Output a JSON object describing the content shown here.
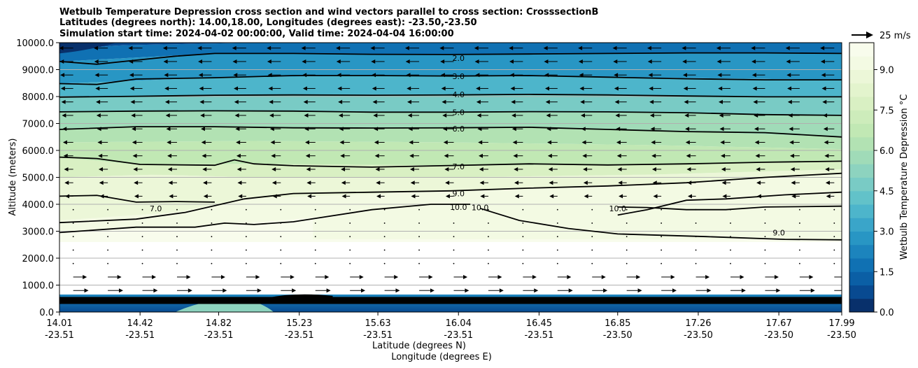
{
  "chart_data": {
    "type": "contour",
    "title_lines": [
      "Wetbulb Temperature Depression cross section and wind vectors parallel to cross section: CrosssectionB",
      "Latitudes (degrees north): 14.00,18.00, Longitudes (degrees east): -23.50,-23.50",
      "Simulation start time: 2024-04-02 00:00:00, Valid time: 2024-04-04 16:00:00"
    ],
    "ylabel": "Altitude (meters)",
    "xlabel_lat": "Latitude (degrees N)",
    "xlabel_lon": "Longitude (degrees E)",
    "ylim": [
      0,
      10000
    ],
    "y_ticks": [
      {
        "value": 0,
        "label": "0.0"
      },
      {
        "value": 1000,
        "label": "1000.0"
      },
      {
        "value": 2000,
        "label": "2000.0"
      },
      {
        "value": 3000,
        "label": "3000.0"
      },
      {
        "value": 4000,
        "label": "4000.0"
      },
      {
        "value": 5000,
        "label": "5000.0"
      },
      {
        "value": 6000,
        "label": "6000.0"
      },
      {
        "value": 7000,
        "label": "7000.0"
      },
      {
        "value": 8000,
        "label": "8000.0"
      },
      {
        "value": 9000,
        "label": "9000.0"
      },
      {
        "value": 10000,
        "label": "10000.0"
      }
    ],
    "xlim": [
      14.01,
      17.99
    ],
    "x_ticks": [
      {
        "lat": 14.01,
        "lat_label": "14.01",
        "lon_label": "-23.51"
      },
      {
        "lat": 14.42,
        "lat_label": "14.42",
        "lon_label": "-23.51"
      },
      {
        "lat": 14.82,
        "lat_label": "14.82",
        "lon_label": "-23.51"
      },
      {
        "lat": 15.23,
        "lat_label": "15.23",
        "lon_label": "-23.51"
      },
      {
        "lat": 15.63,
        "lat_label": "15.63",
        "lon_label": "-23.51"
      },
      {
        "lat": 16.04,
        "lat_label": "16.04",
        "lon_label": "-23.51"
      },
      {
        "lat": 16.45,
        "lat_label": "16.45",
        "lon_label": "-23.51"
      },
      {
        "lat": 16.85,
        "lat_label": "16.85",
        "lon_label": "-23.50"
      },
      {
        "lat": 17.26,
        "lat_label": "17.26",
        "lon_label": "-23.50"
      },
      {
        "lat": 17.67,
        "lat_label": "17.67",
        "lon_label": "-23.50"
      },
      {
        "lat": 17.99,
        "lat_label": "17.99",
        "lon_label": "-23.50"
      }
    ],
    "colorbar": {
      "label": "Wetbulb Temperature Depression °C",
      "range": [
        0,
        10
      ],
      "ticks": [
        {
          "value": 0,
          "label": "0.0"
        },
        {
          "value": 1.5,
          "label": "1.5"
        },
        {
          "value": 3,
          "label": "3.0"
        },
        {
          "value": 4.5,
          "label": "4.5"
        },
        {
          "value": 6,
          "label": "6.0"
        },
        {
          "value": 7.5,
          "label": "7.5"
        },
        {
          "value": 9,
          "label": "9.0"
        }
      ],
      "colors": [
        "#08306b",
        "#084a91",
        "#0b5fa5",
        "#1071b3",
        "#1c84bd",
        "#2896c4",
        "#3aa5c9",
        "#4db5cb",
        "#62c2c9",
        "#79cbc5",
        "#8dd3bf",
        "#a0dbb8",
        "#b2e2b3",
        "#c1e8b4",
        "#cdecbb",
        "#d9f0c3",
        "#e3f4cd",
        "#ecf7d8",
        "#f3fae3",
        "#f8fcec"
      ]
    },
    "wind_key": {
      "label": "25 m/s",
      "speed_ms": 25
    },
    "contour_lines": [
      {
        "label": "2.0",
        "label_lat": 16.04,
        "label_alt": 9430,
        "points": [
          [
            14.01,
            9300
          ],
          [
            14.2,
            9200
          ],
          [
            14.4,
            9350
          ],
          [
            14.6,
            9500
          ],
          [
            14.8,
            9600
          ],
          [
            15.2,
            9600
          ],
          [
            15.6,
            9570
          ],
          [
            16.0,
            9560
          ],
          [
            16.4,
            9580
          ],
          [
            16.8,
            9600
          ],
          [
            17.2,
            9620
          ],
          [
            17.6,
            9620
          ],
          [
            17.99,
            9600
          ]
        ]
      },
      {
        "label": "3.0",
        "label_lat": 16.04,
        "label_alt": 8750,
        "points": [
          [
            14.01,
            8480
          ],
          [
            14.2,
            8450
          ],
          [
            14.4,
            8650
          ],
          [
            14.8,
            8700
          ],
          [
            15.2,
            8780
          ],
          [
            15.6,
            8780
          ],
          [
            16.0,
            8760
          ],
          [
            16.4,
            8780
          ],
          [
            16.8,
            8720
          ],
          [
            17.2,
            8660
          ],
          [
            17.6,
            8620
          ],
          [
            17.99,
            8620
          ]
        ]
      },
      {
        "label": "4.0",
        "label_lat": 16.04,
        "label_alt": 8080,
        "points": [
          [
            14.01,
            7980
          ],
          [
            14.4,
            8010
          ],
          [
            14.8,
            8050
          ],
          [
            15.2,
            8060
          ],
          [
            15.6,
            8050
          ],
          [
            16.0,
            8060
          ],
          [
            16.4,
            8080
          ],
          [
            16.8,
            8060
          ],
          [
            17.2,
            8020
          ],
          [
            17.6,
            7990
          ],
          [
            17.99,
            7990
          ]
        ]
      },
      {
        "label": "5.0",
        "label_lat": 16.04,
        "label_alt": 7420,
        "points": [
          [
            14.01,
            7430
          ],
          [
            14.4,
            7460
          ],
          [
            14.8,
            7470
          ],
          [
            15.2,
            7460
          ],
          [
            15.6,
            7420
          ],
          [
            16.0,
            7420
          ],
          [
            16.4,
            7440
          ],
          [
            16.8,
            7430
          ],
          [
            17.2,
            7400
          ],
          [
            17.6,
            7330
          ],
          [
            17.99,
            7300
          ]
        ]
      },
      {
        "label": "6.0",
        "label_lat": 16.04,
        "label_alt": 6800,
        "points": [
          [
            14.01,
            6780
          ],
          [
            14.4,
            6880
          ],
          [
            14.8,
            6880
          ],
          [
            15.2,
            6840
          ],
          [
            15.6,
            6830
          ],
          [
            16.0,
            6840
          ],
          [
            16.4,
            6860
          ],
          [
            16.8,
            6780
          ],
          [
            17.2,
            6700
          ],
          [
            17.6,
            6660
          ],
          [
            17.99,
            6500
          ]
        ]
      },
      {
        "label": "7.0",
        "label_lat": 16.04,
        "label_alt": 5400,
        "points": [
          [
            14.01,
            5750
          ],
          [
            14.2,
            5700
          ],
          [
            14.42,
            5480
          ],
          [
            14.8,
            5450
          ],
          [
            14.9,
            5650
          ],
          [
            15.0,
            5500
          ],
          [
            15.2,
            5430
          ],
          [
            15.6,
            5380
          ],
          [
            16.0,
            5440
          ],
          [
            16.4,
            5500
          ],
          [
            16.8,
            5460
          ],
          [
            17.2,
            5500
          ],
          [
            17.6,
            5560
          ],
          [
            17.99,
            5600
          ]
        ]
      },
      {
        "label": "7.0",
        "label_lat": 14.5,
        "label_alt": 3850,
        "points": [
          [
            14.01,
            4300
          ],
          [
            14.2,
            4330
          ],
          [
            14.4,
            4080
          ],
          [
            14.6,
            4100
          ],
          [
            14.8,
            4080
          ]
        ]
      },
      {
        "label": "9.0",
        "label_lat": 16.04,
        "label_alt": 4400,
        "points": [
          [
            14.01,
            3320
          ],
          [
            14.4,
            3450
          ],
          [
            14.65,
            3700
          ],
          [
            14.95,
            4200
          ],
          [
            15.2,
            4400
          ],
          [
            15.6,
            4450
          ],
          [
            16.0,
            4500
          ],
          [
            16.4,
            4600
          ],
          [
            16.8,
            4680
          ],
          [
            17.2,
            4800
          ],
          [
            17.6,
            5000
          ],
          [
            17.99,
            5150
          ]
        ]
      },
      {
        "label": "10.0",
        "label_lat": 16.04,
        "label_alt": 3900,
        "points": [
          [
            14.01,
            2950
          ],
          [
            14.4,
            3150
          ],
          [
            14.7,
            3150
          ],
          [
            14.85,
            3300
          ],
          [
            15.0,
            3250
          ],
          [
            15.2,
            3350
          ],
          [
            15.6,
            3800
          ],
          [
            15.9,
            4000
          ],
          [
            16.1,
            4000
          ]
        ]
      },
      {
        "label": "10.0",
        "label_lat": 16.15,
        "label_alt": 3880,
        "points": [
          [
            16.15,
            3850
          ],
          [
            16.35,
            3400
          ],
          [
            16.6,
            3100
          ],
          [
            16.85,
            2900
          ],
          [
            17.3,
            2800
          ],
          [
            17.7,
            2700
          ],
          [
            17.99,
            2680
          ]
        ]
      },
      {
        "label": "10.0",
        "label_lat": 16.85,
        "label_alt": 3850,
        "points": [
          [
            16.85,
            3900
          ],
          [
            17.0,
            3880
          ],
          [
            17.2,
            3800
          ],
          [
            17.4,
            3800
          ],
          [
            17.6,
            3900
          ],
          [
            17.99,
            3930
          ]
        ]
      },
      {
        "label": "9.0",
        "label_lat": 17.67,
        "label_alt": 2950,
        "points": [
          [
            16.85,
            3600
          ],
          [
            17.0,
            3800
          ],
          [
            17.2,
            4150
          ],
          [
            17.4,
            4200
          ],
          [
            17.7,
            4350
          ],
          [
            17.99,
            4450
          ]
        ]
      }
    ],
    "wind_note": "Wind vectors: leftward (southward) aloft above ~4000 m, near calm between 2000-4000 m, rightward (northward) below ~1500 m"
  }
}
